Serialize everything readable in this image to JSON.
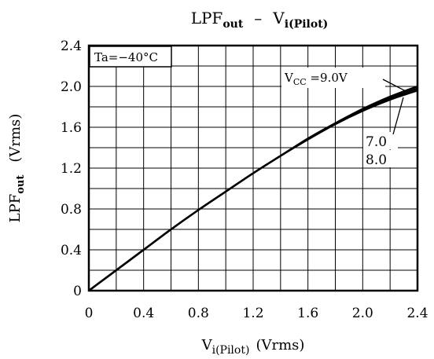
{
  "chart_data": {
    "type": "line",
    "title": {
      "main": "LPF",
      "main_sub": "out",
      "sep": "–",
      "v": "V",
      "v_sub": "i(Pilot)"
    },
    "xlabel": {
      "main": "V",
      "sub": "i(Pilot)",
      "unit": "(Vrms)"
    },
    "ylabel": {
      "main": "LPF",
      "sub": "out",
      "unit": "(Vrms)"
    },
    "x_ticks": [
      "0",
      "0.4",
      "0.8",
      "1.2",
      "1.6",
      "2.0",
      "2.4"
    ],
    "y_ticks": [
      "0",
      "0.4",
      "0.8",
      "1.2",
      "1.6",
      "2.0",
      "2.4"
    ],
    "xlim": [
      0,
      2.4
    ],
    "ylim": [
      0,
      2.4
    ],
    "grid": true,
    "condition_label": "Ta=−40°C",
    "vcc_label": {
      "main": "V",
      "sub": "CC",
      "rest": " =9.0V"
    },
    "series": [
      {
        "name": "9.0V",
        "x": [
          0,
          0.2,
          0.4,
          0.6,
          0.8,
          1.0,
          1.2,
          1.4,
          1.6,
          1.8,
          2.0,
          2.2,
          2.4
        ],
        "y": [
          0,
          0.2,
          0.4,
          0.6,
          0.79,
          0.97,
          1.15,
          1.32,
          1.49,
          1.64,
          1.78,
          1.9,
          2.0
        ]
      },
      {
        "name": "7.0",
        "x": [
          0,
          0.2,
          0.4,
          0.6,
          0.8,
          1.0,
          1.2,
          1.4,
          1.6,
          1.8,
          2.0,
          2.2,
          2.4
        ],
        "y": [
          0,
          0.2,
          0.4,
          0.6,
          0.79,
          0.97,
          1.15,
          1.32,
          1.48,
          1.63,
          1.76,
          1.87,
          1.96
        ]
      },
      {
        "name": "8.0",
        "x": [
          0,
          0.2,
          0.4,
          0.6,
          0.8,
          1.0,
          1.2,
          1.4,
          1.6,
          1.8,
          2.0,
          2.2,
          2.4
        ],
        "y": [
          0,
          0.2,
          0.4,
          0.6,
          0.79,
          0.97,
          1.15,
          1.32,
          1.485,
          1.635,
          1.77,
          1.885,
          1.98
        ]
      }
    ]
  }
}
